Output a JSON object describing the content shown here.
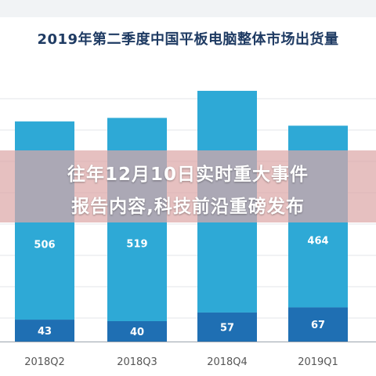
{
  "overlay": {
    "line1": "往年12月10日实时重大事件",
    "line2": "报告内容,科技前沿重磅发布"
  },
  "colors": {
    "upper_bar": "#2ea9d6",
    "lower_bar": "#1f6fb3",
    "title": "#1f3b63",
    "grid": "#e3e6ea",
    "axis": "#9aa3ad",
    "label": "#ffffff",
    "tick": "#555555"
  },
  "chart_data": {
    "type": "bar",
    "title": "2019年第二季度中国平板电脑整体市场出货量",
    "categories": [
      "2018Q2",
      "2018Q3",
      "2018Q4",
      "2019Q1"
    ],
    "series": [
      {
        "values": [
          43,
          40,
          57,
          67
        ]
      },
      {
        "values": [
          506,
          519,
          null,
          464
        ]
      }
    ],
    "stacked": true,
    "grid": true,
    "xlabel": "",
    "ylabel": ""
  }
}
